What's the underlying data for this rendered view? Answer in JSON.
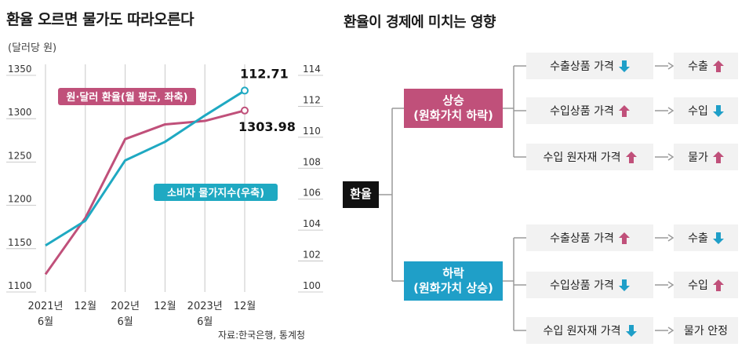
{
  "left_title": "환율 오르면 물가도 따라오른다",
  "right_title": "환율이 경제에 미치는 영향",
  "source": "자료:한국은행, 통계청",
  "colors": {
    "fx": "#c0507a",
    "cpi": "#1fa9c2",
    "fall": "#1f9fc8",
    "rise": "#c0507a",
    "root": "#111111"
  },
  "chart_data": {
    "type": "line",
    "title": "환율 오르면 물가도 따라오른다",
    "y_left_label": "(달러당 원)",
    "x_tick_labels": [
      {
        "top": "2021년",
        "bottom": "6월"
      },
      {
        "top": "12월",
        "bottom": ""
      },
      {
        "top": "202년",
        "bottom": "6월"
      },
      {
        "top": "12월",
        "bottom": ""
      },
      {
        "top": "2023년",
        "bottom": "6월"
      },
      {
        "top": "12월",
        "bottom": ""
      }
    ],
    "y_left_ticks": [
      "1350",
      "1300",
      "1250",
      "1200",
      "1150",
      "1100"
    ],
    "y_right_ticks": [
      "114",
      "112",
      "110",
      "108",
      "106",
      "104",
      "102",
      "100"
    ],
    "y_left_range": [
      1100,
      1350
    ],
    "y_right_range": [
      100,
      114
    ],
    "series": [
      {
        "name": "원·달러 환율(월 평균, 좌축)",
        "axis": "left",
        "values": [
          1115,
          1180,
          1271,
          1288,
          1292,
          1303.98
        ],
        "end_label": "1303.98"
      },
      {
        "name": "소비자 물가지수(우축)",
        "axis": "right",
        "values": [
          102.7,
          104.3,
          108.2,
          109.4,
          111.1,
          112.71
        ],
        "end_label": "112.71"
      }
    ]
  },
  "diagram": {
    "root": "환율",
    "branches": [
      {
        "line1": "상승",
        "line2": "(원화가치 하락)",
        "items": [
          {
            "label": "수출상품 가격",
            "dir": "down",
            "result": "수출",
            "result_dir": "up"
          },
          {
            "label": "수입상품 가격",
            "dir": "up",
            "result": "수입",
            "result_dir": "down"
          },
          {
            "label": "수입 원자재 가격",
            "dir": "up",
            "result": "물가",
            "result_dir": "up"
          }
        ]
      },
      {
        "line1": "하락",
        "line2": "(원화가치 상승)",
        "items": [
          {
            "label": "수출상품 가격",
            "dir": "up",
            "result": "수출",
            "result_dir": "down"
          },
          {
            "label": "수입상품 가격",
            "dir": "down",
            "result": "수입",
            "result_dir": "up"
          },
          {
            "label": "수입 원자재 가격",
            "dir": "down",
            "result": "물가 안정",
            "result_dir": ""
          }
        ]
      }
    ]
  }
}
